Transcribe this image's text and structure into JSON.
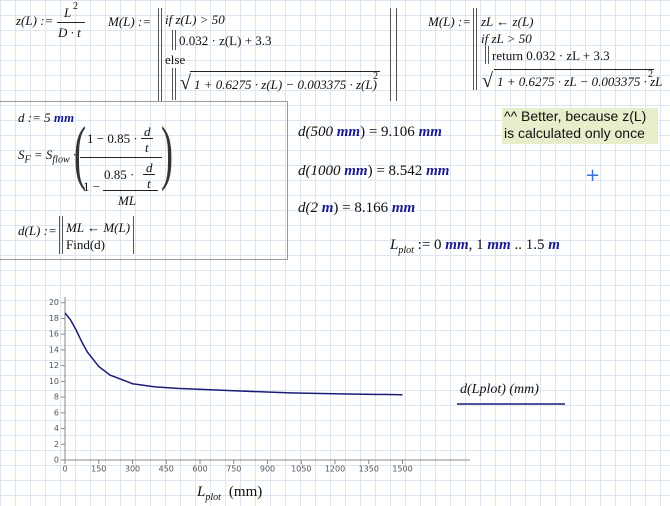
{
  "regions": {
    "z_def": [
      "z(L) :=",
      "L",
      "2",
      "D · t"
    ],
    "M_def1": [
      "M(L) :=",
      "if z(L) > 50",
      "0.032 · z(L) + 3.3",
      "else",
      "1 + 0.6275 · z(L) − 0.003375 · z(L)",
      "2"
    ],
    "M_def2": [
      "M(L) :=",
      "zL ← z(L)",
      "if zL > 50",
      "return 0.032 · zL + 3.3",
      "1 + 0.6275 · zL − 0.003375 · zL",
      "2"
    ],
    "note": [
      "^^ Better, because z(L)",
      "is calculated only once"
    ],
    "solve_block": [
      "d := 5 ",
      "mm",
      "S",
      "F",
      " = S",
      "flow",
      " ·",
      "1 − 0.85 ·",
      "d",
      "t",
      "1 −",
      "0.85 ·",
      "d",
      "t",
      "ML",
      "d(L) :=",
      "ML ← M(L)",
      "Find(d)"
    ],
    "results": [
      [
        "d(500 ",
        "mm",
        ") = 9.106 ",
        "mm"
      ],
      [
        "d(1000 ",
        "mm",
        ") = 8.542 ",
        "mm"
      ],
      [
        "d(2 ",
        "m",
        ") = 8.166 ",
        "mm"
      ]
    ],
    "range": [
      "L",
      "plot",
      " := 0 ",
      "mm",
      ", 1 ",
      "mm",
      " .. 1.5 ",
      "m"
    ]
  },
  "chart_data": {
    "type": "line",
    "x": [
      0,
      25,
      50,
      75,
      100,
      150,
      200,
      300,
      400,
      500,
      750,
      1000,
      1250,
      1500
    ],
    "series": [
      {
        "name": "d(Lplot)  (mm)",
        "color": "#1c1c78",
        "values": [
          18.7,
          17.8,
          16.5,
          15.0,
          13.7,
          11.9,
          10.8,
          9.7,
          9.3,
          9.106,
          8.8,
          8.542,
          8.4,
          8.3
        ]
      }
    ],
    "xlim": [
      0,
      1800
    ],
    "ylim": [
      0,
      20.6
    ],
    "xticks": [
      0,
      150,
      300,
      450,
      600,
      750,
      900,
      1050,
      1200,
      1350,
      1500
    ],
    "yticks": [
      0,
      2,
      4,
      6,
      8,
      10,
      12,
      14,
      16,
      18,
      20
    ],
    "xlabel": "L",
    "xlabel_subscript": "plot",
    "xlabel_unit": "(mm)"
  }
}
